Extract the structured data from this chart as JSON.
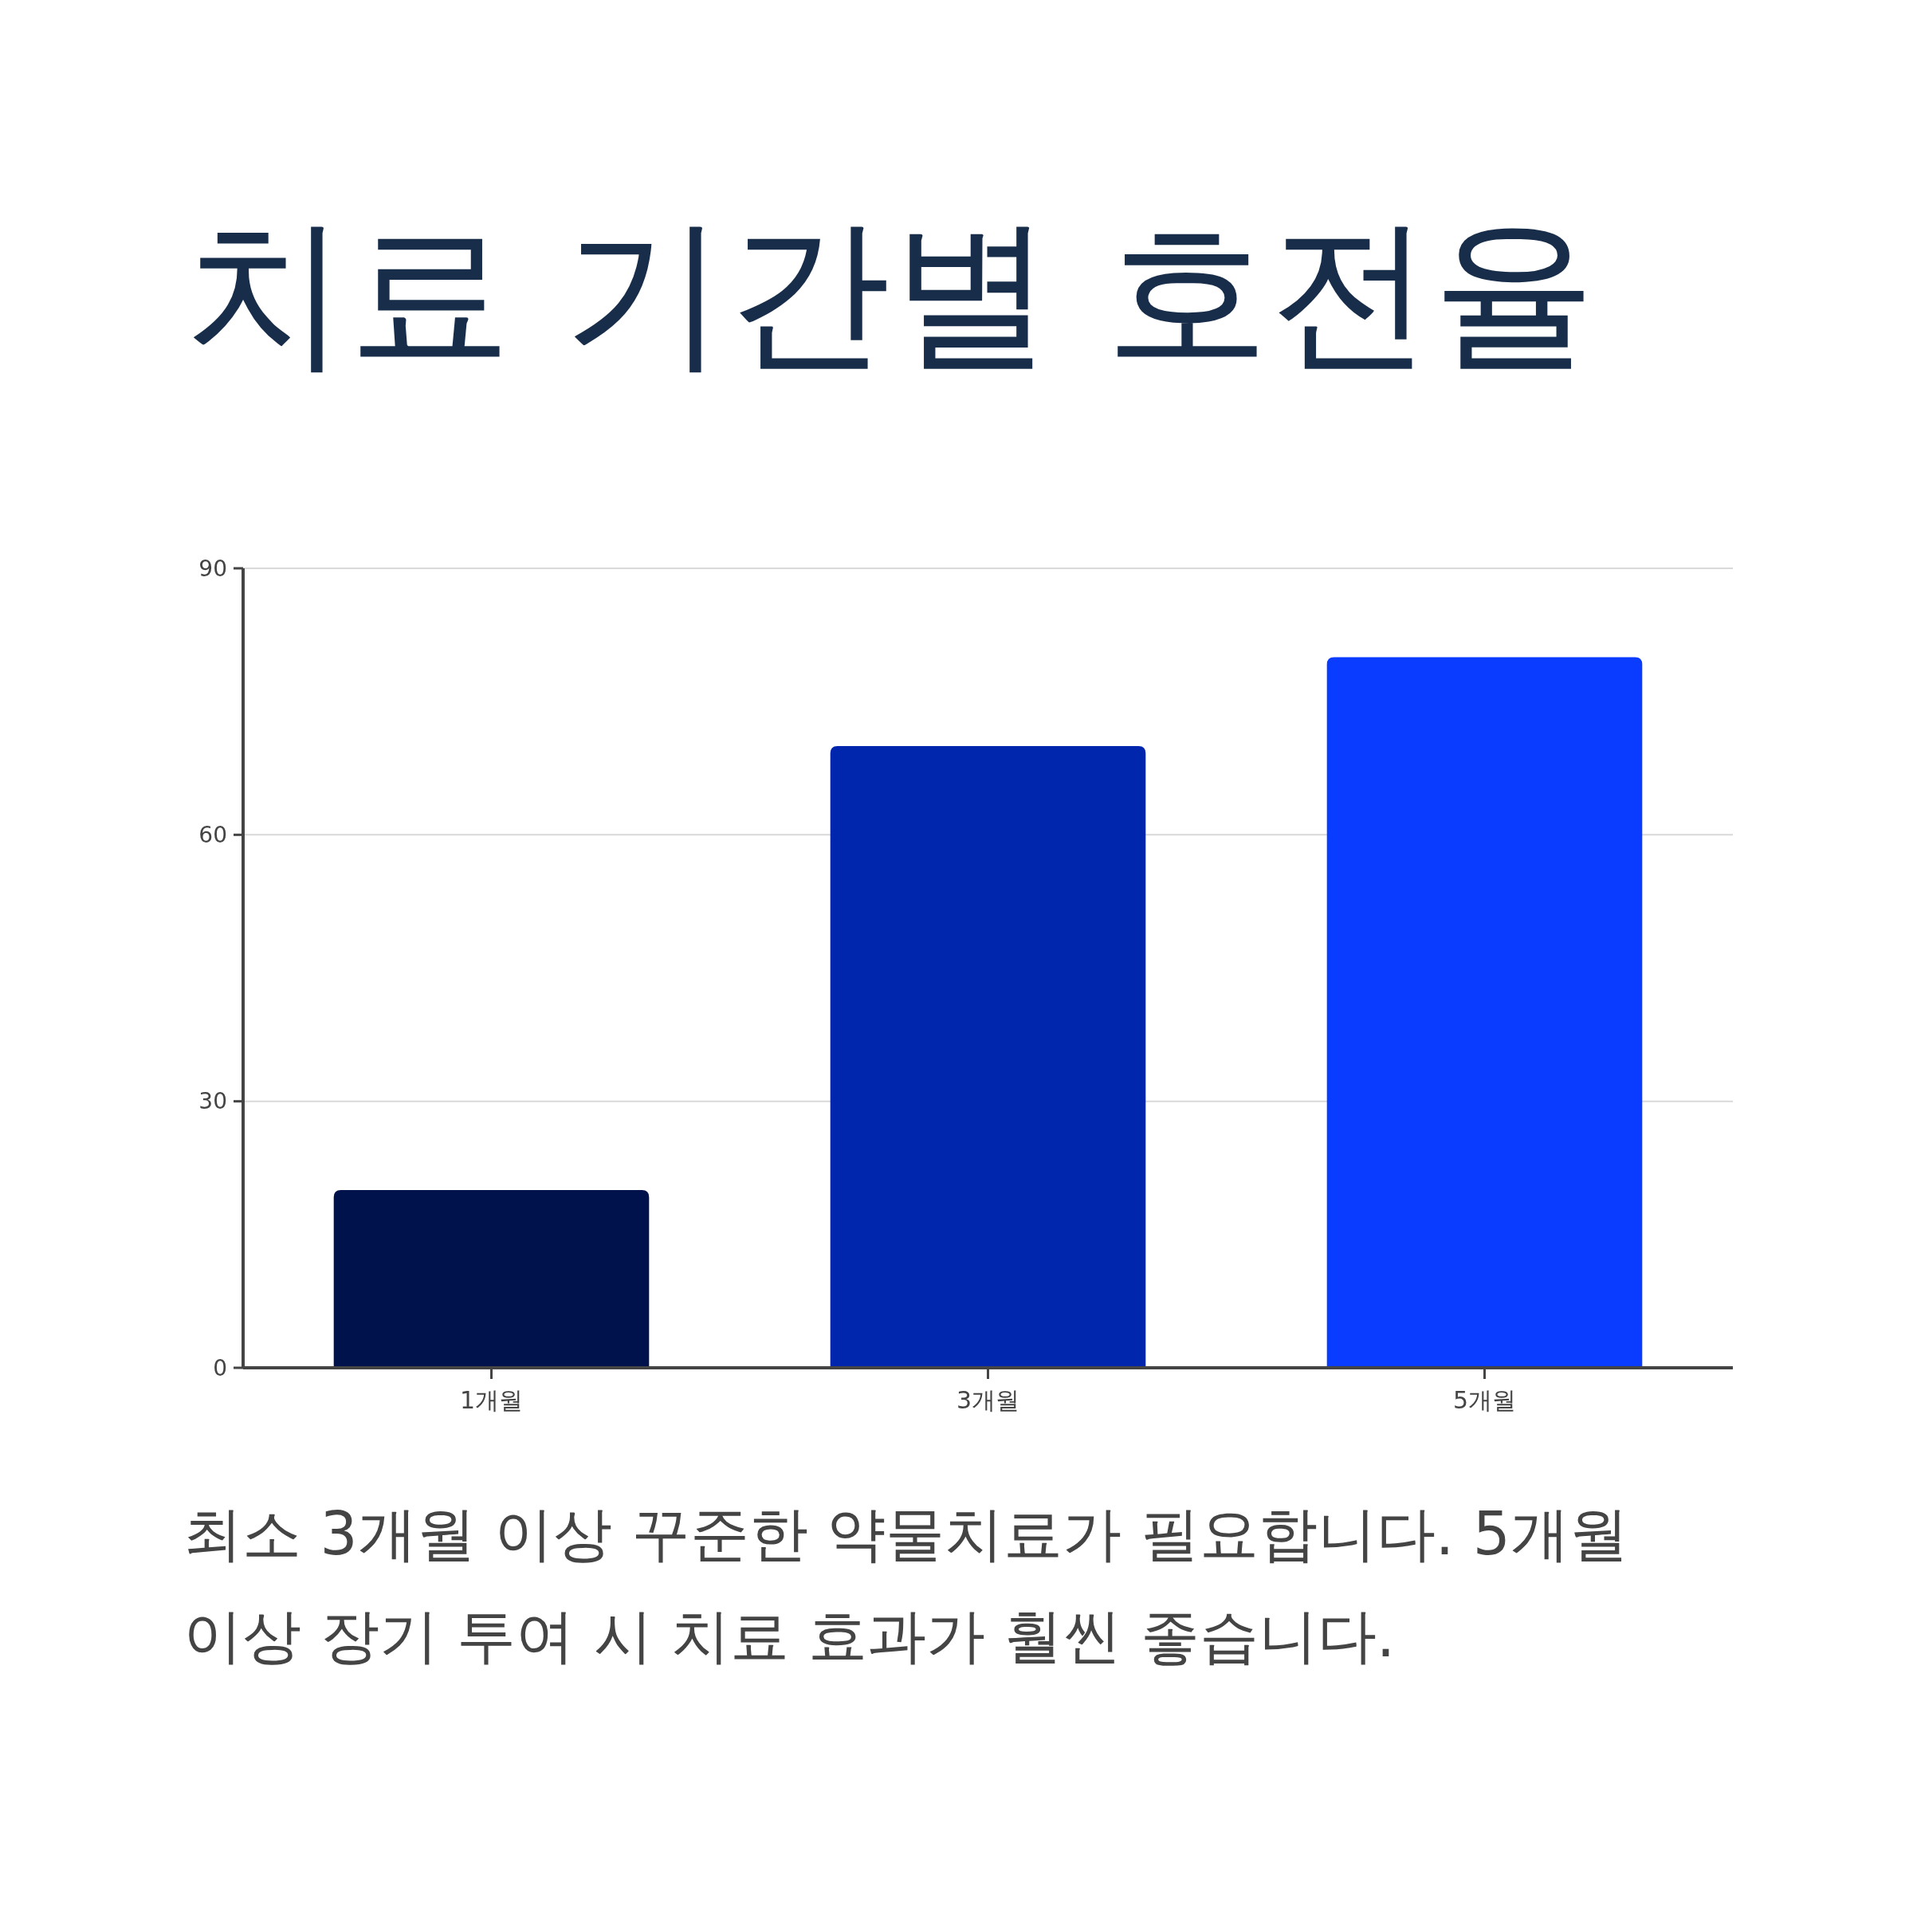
{
  "chart_data": {
    "type": "bar",
    "title": "치료 기간별 호전율",
    "categories": [
      "1개월",
      "3개월",
      "5개월"
    ],
    "values": [
      20,
      70,
      80
    ],
    "colors": [
      "#00124b",
      "#0026ad",
      "#0a3cff"
    ],
    "ylim": [
      0,
      90
    ],
    "yticks": [
      0,
      30,
      60,
      90
    ],
    "grid": "y",
    "annotations": [
      "최소 3개월 이상 꾸준한 약물치료가 필요합니다. 5개월 이상 장기 투여 시 치료 효과가 훨씬 좋습니다."
    ]
  }
}
